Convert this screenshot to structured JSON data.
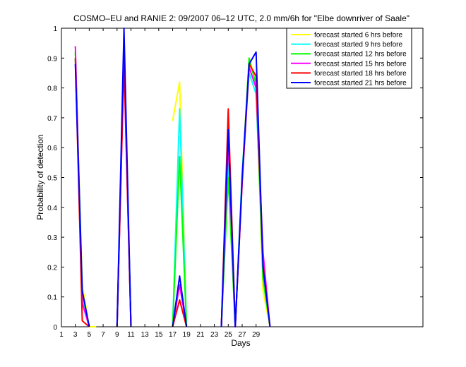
{
  "chart_data": {
    "type": "line",
    "title": "COSMO–EU and RANIE 2: 09/2007 06–12 UTC, 2.0 mm/6h for \"Elbe downriver of Saale\"",
    "xlabel": "Days",
    "ylabel": "Probability of detection",
    "xlim": [
      1,
      53
    ],
    "ylim": [
      0,
      1
    ],
    "x_ticks": [
      1,
      3,
      5,
      7,
      9,
      11,
      13,
      15,
      17,
      19,
      21,
      23,
      25,
      27,
      29
    ],
    "x_tick_labels": [
      "1",
      "3",
      "5",
      "7",
      "9",
      "11",
      "13",
      "15",
      "17",
      "19",
      "21",
      "23",
      "25",
      "27",
      "29"
    ],
    "y_ticks": [
      0,
      0.1,
      0.2,
      0.3,
      0.4,
      0.5,
      0.6,
      0.7,
      0.8,
      0.9,
      1
    ],
    "y_tick_labels": [
      "0",
      "0.1",
      "0.2",
      "0.3",
      "0.4",
      "0.5",
      "0.6",
      "0.7",
      "0.8",
      "0.9",
      "1"
    ],
    "grid": false,
    "legend_position": "top-right",
    "series": [
      {
        "name": "forecast started 6 hrs before",
        "color": "#ffff00",
        "segments": [
          {
            "x": [
              3,
              4,
              5,
              6
            ],
            "y": [
              0.9,
              0.14,
              0.0,
              0.0
            ]
          },
          {
            "x": [
              9,
              10,
              11
            ],
            "y": [
              0.0,
              0.92,
              0.0
            ]
          },
          {
            "x": [
              17,
              18,
              19
            ],
            "y": [
              0.69,
              0.82,
              0.0
            ]
          },
          {
            "x": [
              24,
              25,
              26,
              27,
              28,
              29,
              30,
              31
            ],
            "y": [
              0.0,
              0.6,
              0.0,
              0.5,
              0.9,
              0.82,
              0.12,
              0.0
            ]
          }
        ]
      },
      {
        "name": "forecast started 9 hrs before",
        "color": "#00ffff",
        "segments": [
          {
            "x": [
              3,
              4,
              5
            ],
            "y": [
              0.9,
              0.1,
              0.0
            ]
          },
          {
            "x": [
              9,
              10,
              11
            ],
            "y": [
              0.0,
              0.93,
              0.0
            ]
          },
          {
            "x": [
              17,
              18,
              19
            ],
            "y": [
              0.0,
              0.73,
              0.0
            ]
          },
          {
            "x": [
              24,
              25,
              26,
              27,
              28,
              29,
              30,
              31
            ],
            "y": [
              0.0,
              0.55,
              0.0,
              0.52,
              0.85,
              0.78,
              0.2,
              0.0
            ]
          }
        ]
      },
      {
        "name": "forecast started 12 hrs before",
        "color": "#00ff00",
        "segments": [
          {
            "x": [
              3,
              4,
              5
            ],
            "y": [
              0.92,
              0.12,
              0.0
            ]
          },
          {
            "x": [
              9,
              10,
              11
            ],
            "y": [
              0.0,
              0.92,
              0.0
            ]
          },
          {
            "x": [
              17,
              18,
              19
            ],
            "y": [
              0.0,
              0.57,
              0.0
            ]
          },
          {
            "x": [
              24,
              25,
              26,
              27,
              28,
              29,
              30,
              31
            ],
            "y": [
              0.0,
              0.5,
              0.0,
              0.5,
              0.9,
              0.81,
              0.16,
              0.0
            ]
          }
        ]
      },
      {
        "name": "forecast started 15 hrs before",
        "color": "#ff00ff",
        "segments": [
          {
            "x": [
              3,
              4,
              5
            ],
            "y": [
              0.94,
              0.08,
              0.0
            ]
          },
          {
            "x": [
              9,
              10,
              11
            ],
            "y": [
              0.0,
              0.88,
              0.0
            ]
          },
          {
            "x": [
              17,
              18,
              19
            ],
            "y": [
              0.0,
              0.14,
              0.0
            ]
          },
          {
            "x": [
              24,
              25,
              26,
              27,
              28,
              29,
              30,
              31
            ],
            "y": [
              0.0,
              0.62,
              0.0,
              0.48,
              0.87,
              0.8,
              0.25,
              0.0
            ]
          }
        ]
      },
      {
        "name": "forecast started 18 hrs before",
        "color": "#ff0000",
        "segments": [
          {
            "x": [
              3,
              4,
              5
            ],
            "y": [
              0.9,
              0.02,
              0.0
            ]
          },
          {
            "x": [
              9,
              10,
              11
            ],
            "y": [
              0.0,
              0.9,
              0.0
            ]
          },
          {
            "x": [
              17,
              18,
              19
            ],
            "y": [
              0.0,
              0.09,
              0.0
            ]
          },
          {
            "x": [
              24,
              25,
              26,
              27,
              28,
              29,
              30,
              31
            ],
            "y": [
              0.0,
              0.73,
              0.0,
              0.49,
              0.88,
              0.84,
              0.21,
              0.0
            ]
          }
        ]
      },
      {
        "name": "forecast started 21 hrs before",
        "color": "#0000ff",
        "segments": [
          {
            "x": [
              3,
              4,
              5
            ],
            "y": [
              0.88,
              0.12,
              0.0
            ]
          },
          {
            "x": [
              9,
              10,
              11
            ],
            "y": [
              0.0,
              1.0,
              0.0
            ]
          },
          {
            "x": [
              17,
              18,
              19
            ],
            "y": [
              0.0,
              0.17,
              0.0
            ]
          },
          {
            "x": [
              24,
              25,
              26,
              27,
              28,
              29,
              30,
              31
            ],
            "y": [
              0.0,
              0.66,
              0.0,
              0.5,
              0.88,
              0.92,
              0.2,
              0.0
            ]
          }
        ]
      }
    ]
  }
}
